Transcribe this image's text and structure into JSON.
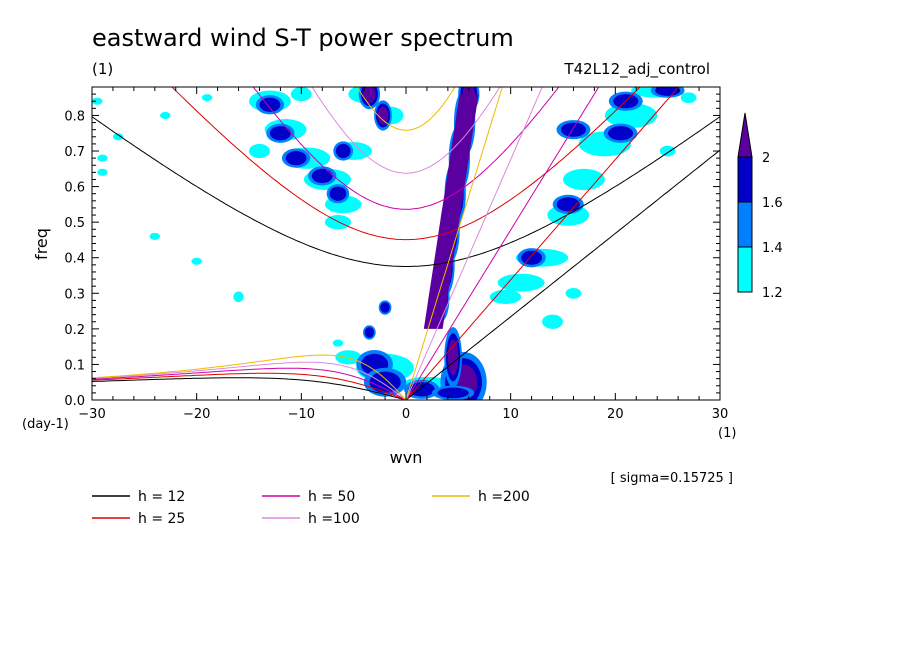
{
  "chart_data": {
    "type": "heatmap",
    "title": "eastward wind S-T power spectrum",
    "subtitle_left": "(1)",
    "subtitle_right": "T42L12_adj_control",
    "xlabel": "wvn",
    "ylabel": "freq",
    "x_unit": "(1)",
    "y_unit": "(day-1)",
    "xlim": [
      -30,
      30
    ],
    "ylim": [
      0,
      0.88
    ],
    "x_ticks": [
      -30,
      -20,
      -10,
      0,
      10,
      20,
      30
    ],
    "y_ticks": [
      0.0,
      0.1,
      0.2,
      0.3,
      0.4,
      0.5,
      0.6,
      0.7,
      0.8
    ],
    "x_tick_labels": [
      "−30",
      "−20",
      "−10",
      "0",
      "10",
      "20",
      "30"
    ],
    "y_tick_labels": [
      "0.0",
      "0.1",
      "0.2",
      "0.3",
      "0.4",
      "0.5",
      "0.6",
      "0.7",
      "0.8"
    ],
    "sigma_note": "[ sigma=0.15725 ]",
    "colorbar": {
      "levels": [
        1.2,
        1.4,
        1.6,
        2
      ],
      "labels": [
        "1.2",
        "1.4",
        "1.6",
        "2"
      ],
      "colors": [
        "#00ffff",
        "#0080ff",
        "#0000c8",
        "#5a00a0"
      ]
    },
    "dispersion_curves": [
      {
        "h": 12,
        "label": "h = 12",
        "color": "#000000"
      },
      {
        "h": 25,
        "label": "h = 25",
        "color": "#dd0000"
      },
      {
        "h": 50,
        "label": "h = 50",
        "color": "#cc00aa"
      },
      {
        "h": 100,
        "label": "h =100",
        "color": "#dd88dd"
      },
      {
        "h": 200,
        "label": "h =200",
        "color": "#eebb00"
      }
    ],
    "power_blobs": [
      {
        "x": 5.5,
        "y": 0.05,
        "w": 2.6,
        "h": 0.1,
        "level": 3
      },
      {
        "x": 4.5,
        "y": 0.12,
        "w": 1.0,
        "h": 0.1,
        "level": 3
      },
      {
        "x": 3.0,
        "y": 0.24,
        "w": 0.6,
        "h": 0.04,
        "level": 3
      },
      {
        "x": 3.4,
        "y": 0.29,
        "w": 0.9,
        "h": 0.08,
        "level": 3
      },
      {
        "x": 3.8,
        "y": 0.38,
        "w": 1.0,
        "h": 0.1,
        "level": 3
      },
      {
        "x": 4.2,
        "y": 0.48,
        "w": 1.1,
        "h": 0.11,
        "level": 3
      },
      {
        "x": 4.7,
        "y": 0.58,
        "w": 1.2,
        "h": 0.11,
        "level": 3
      },
      {
        "x": 5.1,
        "y": 0.68,
        "w": 1.2,
        "h": 0.11,
        "level": 3
      },
      {
        "x": 5.6,
        "y": 0.78,
        "w": 1.2,
        "h": 0.11,
        "level": 3
      },
      {
        "x": 6.0,
        "y": 0.86,
        "w": 1.2,
        "h": 0.06,
        "level": 3
      },
      {
        "x": -3.0,
        "y": 0.1,
        "w": 2.6,
        "h": 0.06,
        "level": 2
      },
      {
        "x": -2.0,
        "y": 0.05,
        "w": 3.0,
        "h": 0.06,
        "level": 2
      },
      {
        "x": 1.5,
        "y": 0.03,
        "w": 2.5,
        "h": 0.04,
        "level": 2
      },
      {
        "x": -3.5,
        "y": 0.19,
        "w": 0.9,
        "h": 0.03,
        "level": 2
      },
      {
        "x": -2.0,
        "y": 0.26,
        "w": 0.9,
        "h": 0.03,
        "level": 2
      },
      {
        "x": 4.5,
        "y": 0.02,
        "w": 3.0,
        "h": 0.03,
        "level": 2
      },
      {
        "x": -3.5,
        "y": 0.86,
        "w": 1.2,
        "h": 0.05,
        "level": 3
      },
      {
        "x": -2.2,
        "y": 0.8,
        "w": 1.0,
        "h": 0.05,
        "level": 3
      },
      {
        "x": -13.0,
        "y": 0.83,
        "w": 2.0,
        "h": 0.04,
        "level": 2
      },
      {
        "x": -12.0,
        "y": 0.75,
        "w": 2.0,
        "h": 0.04,
        "level": 2
      },
      {
        "x": -10.5,
        "y": 0.68,
        "w": 2.0,
        "h": 0.04,
        "level": 2
      },
      {
        "x": -8.0,
        "y": 0.63,
        "w": 2.0,
        "h": 0.04,
        "level": 2
      },
      {
        "x": -6.5,
        "y": 0.58,
        "w": 1.6,
        "h": 0.04,
        "level": 2
      },
      {
        "x": -6.0,
        "y": 0.7,
        "w": 1.4,
        "h": 0.04,
        "level": 2
      },
      {
        "x": 16.0,
        "y": 0.76,
        "w": 2.4,
        "h": 0.04,
        "level": 2
      },
      {
        "x": 20.5,
        "y": 0.75,
        "w": 2.4,
        "h": 0.04,
        "level": 2
      },
      {
        "x": 15.5,
        "y": 0.55,
        "w": 2.2,
        "h": 0.04,
        "level": 2
      },
      {
        "x": 21.0,
        "y": 0.84,
        "w": 2.4,
        "h": 0.04,
        "level": 2
      },
      {
        "x": 12.0,
        "y": 0.4,
        "w": 2.0,
        "h": 0.04,
        "level": 2
      },
      {
        "x": 25.0,
        "y": 0.87,
        "w": 2.4,
        "h": 0.03,
        "level": 2
      }
    ],
    "cyan_blobs": [
      {
        "x": -2.0,
        "y": 0.09,
        "w": 5.5,
        "h": 0.08
      },
      {
        "x": 2.0,
        "y": 0.04,
        "w": 5.0,
        "h": 0.05
      },
      {
        "x": 5.5,
        "y": 0.06,
        "w": 4.0,
        "h": 0.08
      },
      {
        "x": -5.5,
        "y": 0.12,
        "w": 2.5,
        "h": 0.04
      },
      {
        "x": -13.0,
        "y": 0.84,
        "w": 4.0,
        "h": 0.06
      },
      {
        "x": -11.5,
        "y": 0.76,
        "w": 4.0,
        "h": 0.06
      },
      {
        "x": -9.5,
        "y": 0.68,
        "w": 4.5,
        "h": 0.06
      },
      {
        "x": -7.5,
        "y": 0.62,
        "w": 4.5,
        "h": 0.06
      },
      {
        "x": -6.0,
        "y": 0.55,
        "w": 3.5,
        "h": 0.05
      },
      {
        "x": -5.0,
        "y": 0.7,
        "w": 3.5,
        "h": 0.05
      },
      {
        "x": -6.5,
        "y": 0.5,
        "w": 2.5,
        "h": 0.04
      },
      {
        "x": -14.0,
        "y": 0.7,
        "w": 2.0,
        "h": 0.04
      },
      {
        "x": -4.0,
        "y": 0.86,
        "w": 3.0,
        "h": 0.05
      },
      {
        "x": -1.5,
        "y": 0.8,
        "w": 2.5,
        "h": 0.05
      },
      {
        "x": -10.0,
        "y": 0.86,
        "w": 2.0,
        "h": 0.04
      },
      {
        "x": 13.0,
        "y": 0.4,
        "w": 5.0,
        "h": 0.05
      },
      {
        "x": 11.0,
        "y": 0.33,
        "w": 4.5,
        "h": 0.05
      },
      {
        "x": 9.5,
        "y": 0.29,
        "w": 3.0,
        "h": 0.04
      },
      {
        "x": 15.5,
        "y": 0.52,
        "w": 4.0,
        "h": 0.06
      },
      {
        "x": 17.0,
        "y": 0.62,
        "w": 4.0,
        "h": 0.06
      },
      {
        "x": 19.0,
        "y": 0.72,
        "w": 5.0,
        "h": 0.07
      },
      {
        "x": 21.5,
        "y": 0.8,
        "w": 5.0,
        "h": 0.07
      },
      {
        "x": 24.0,
        "y": 0.87,
        "w": 5.0,
        "h": 0.04
      },
      {
        "x": 14.0,
        "y": 0.22,
        "w": 2.0,
        "h": 0.04
      },
      {
        "x": 16.0,
        "y": 0.3,
        "w": 1.5,
        "h": 0.03
      },
      {
        "x": -23.0,
        "y": 0.8,
        "w": 1.0,
        "h": 0.02
      },
      {
        "x": -29.0,
        "y": 0.64,
        "w": 1.0,
        "h": 0.02
      },
      {
        "x": -29.0,
        "y": 0.68,
        "w": 1.0,
        "h": 0.02
      },
      {
        "x": -27.5,
        "y": 0.74,
        "w": 1.0,
        "h": 0.02
      },
      {
        "x": -29.5,
        "y": 0.84,
        "w": 1.0,
        "h": 0.02
      },
      {
        "x": -24.0,
        "y": 0.46,
        "w": 1.0,
        "h": 0.02
      },
      {
        "x": -20.0,
        "y": 0.39,
        "w": 1.0,
        "h": 0.02
      },
      {
        "x": -16.0,
        "y": 0.29,
        "w": 1.0,
        "h": 0.03
      },
      {
        "x": -6.5,
        "y": 0.16,
        "w": 1.0,
        "h": 0.02
      },
      {
        "x": 25.0,
        "y": 0.7,
        "w": 1.5,
        "h": 0.03
      },
      {
        "x": 27.0,
        "y": 0.85,
        "w": 1.5,
        "h": 0.03
      },
      {
        "x": -19.0,
        "y": 0.85,
        "w": 1.0,
        "h": 0.02
      }
    ]
  }
}
